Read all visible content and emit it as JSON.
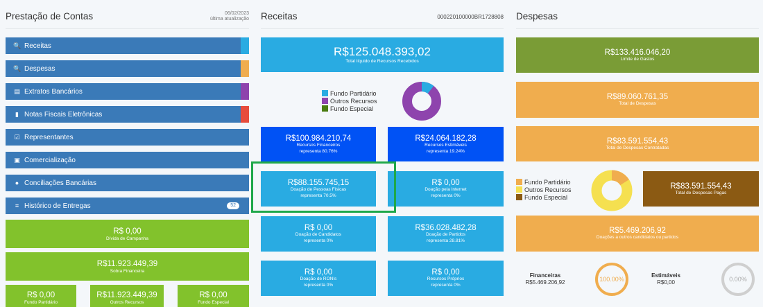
{
  "header": {
    "left_title": "Prestação de Contas",
    "left_date": "06/02/2023",
    "left_date_label": "última atualização",
    "mid_title": "Receitas",
    "mid_protocol": "000220100000BR1728808",
    "right_title": "Despesas"
  },
  "menu": [
    {
      "label": "Receitas",
      "icon": "search-icon",
      "glyph": "🔍",
      "strip": "#29abe2"
    },
    {
      "label": "Despesas",
      "icon": "search-icon",
      "glyph": "🔍",
      "strip": "#f0ad4e"
    },
    {
      "label": "Extratos Bancários",
      "icon": "document-icon",
      "glyph": "▤",
      "strip": "#8e44ad"
    },
    {
      "label": "Notas Fiscais Eletrônicas",
      "icon": "file-icon",
      "glyph": "▮",
      "strip": "#e74c3c"
    },
    {
      "label": "Representantes",
      "icon": "checkbox-icon",
      "glyph": "☑",
      "strip": ""
    },
    {
      "label": "Comercialização",
      "icon": "calendar-icon",
      "glyph": "▣",
      "strip": ""
    },
    {
      "label": "Conciliações Bancárias",
      "icon": "chat-icon",
      "glyph": "●",
      "strip": ""
    },
    {
      "label": "Histórico de Entregas",
      "icon": "list-icon",
      "glyph": "≡",
      "strip": "",
      "badge": "52"
    }
  ],
  "left_boxes": {
    "divida_value": "R$ 0,00",
    "divida_label": "Dívida de Campanha",
    "sobra_value": "R$11.923.449,39",
    "sobra_label": "Sobra Financeira",
    "fp_value": "R$ 0,00",
    "fp_label": "Fundo Partidário",
    "or_value": "R$11.923.449,39",
    "or_label": "Outros Recursos",
    "fe_value": "R$ 0,00",
    "fe_label": "Fundo Especial"
  },
  "receitas": {
    "total_value": "R$125.048.393,02",
    "total_label": "Total líquido de Recursos Recebidos",
    "legend": [
      {
        "name": "Fundo Partidário",
        "color": "#29abe2"
      },
      {
        "name": "Outros Recursos",
        "color": "#8e44ad"
      },
      {
        "name": "Fundo Especial",
        "color": "#4a7c10"
      }
    ],
    "fin_value": "R$100.984.210,74",
    "fin_label": "Recursos Financeiros",
    "fin_rep": "representa 80.76%",
    "est_value": "R$24.064.182,28",
    "est_label": "Recursos Estimáveis",
    "est_rep": "representa 19.24%",
    "pf_value": "R$88.155.745,15",
    "pf_label": "Doação de Pessoas Físicas",
    "pf_rep": "representa 70.5%",
    "int_value": "R$ 0,00",
    "int_label": "Doação pela Internet",
    "int_rep": "representa 0%",
    "cand_value": "R$ 0,00",
    "cand_label": "Doação de Candidatos",
    "cand_rep": "representa 0%",
    "part_value": "R$36.028.482,28",
    "part_label": "Doação de Partidos",
    "part_rep": "representa 28.81%",
    "ronis_value": "R$ 0,00",
    "ronis_label": "Doação de RONIs",
    "ronis_rep": "representa 0%",
    "prop_value": "R$ 0,00",
    "prop_label": "Recursos Próprios",
    "prop_rep": "representa 0%"
  },
  "despesas": {
    "limite_value": "R$133.416.046,20",
    "limite_label": "Limite de Gastos",
    "total_value": "R$89.060.761,35",
    "total_label": "Total de Despesas",
    "contratadas_value": "R$83.591.554,43",
    "contratadas_label": "Total de Despesas Contratadas",
    "legend": [
      {
        "name": "Fundo Partidário",
        "color": "#f0ad4e"
      },
      {
        "name": "Outros Recursos",
        "color": "#f5e050"
      },
      {
        "name": "Fundo Especial",
        "color": "#8b5a13"
      }
    ],
    "pagas_value": "R$83.591.554,43",
    "pagas_label": "Total de Despesas Pagas",
    "doacoes_value": "R$5.469.206,92",
    "doacoes_label": "Doações a outros candidatos ou partidos",
    "fin_title": "Financeiras",
    "fin_value": "R$5.469.206,92",
    "fin_pct": "100.00%",
    "est_title": "Estimáveis",
    "est_value": "R$0,00",
    "est_pct": "0.00%"
  }
}
